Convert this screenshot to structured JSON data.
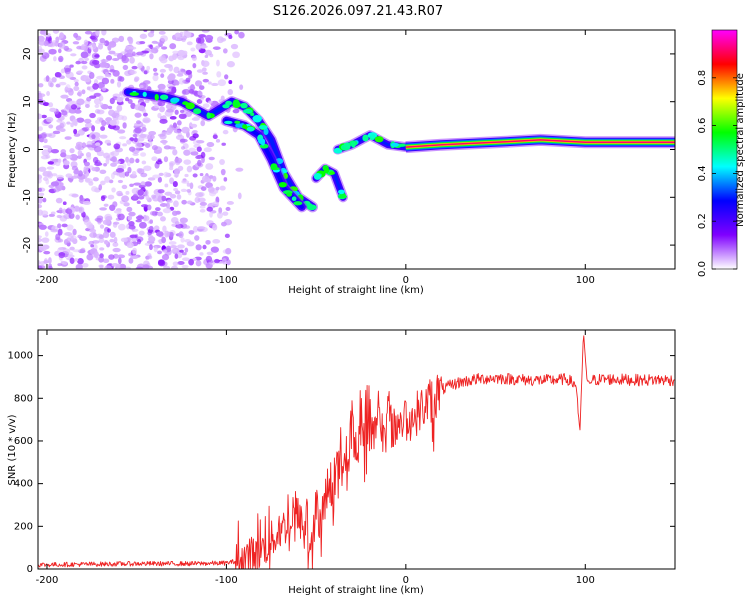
{
  "chart_data": [
    {
      "type": "heatmap",
      "title": "S126.2026.097.21.43.R07",
      "xlabel": "Height of straight line (km)",
      "ylabel": "Frequency (Hz)",
      "xlim": [
        -205,
        150
      ],
      "ylim": [
        -25,
        25
      ],
      "xticks": [
        -200,
        -100,
        0,
        100
      ],
      "yticks": [
        -20,
        -10,
        0,
        10,
        20
      ],
      "colorbar": {
        "label": "Normalized spectral amplitude",
        "range": [
          0.0,
          1.0
        ],
        "ticks": [
          "0.0",
          "0.2",
          "0.4",
          "0.6",
          "0.8"
        ],
        "tick_values": [
          0.0,
          0.2,
          0.4,
          0.6,
          0.8
        ],
        "colors": [
          "#ffffff",
          "#7f00ff",
          "#0000ff",
          "#00ffff",
          "#00ff00",
          "#ffff00",
          "#ff0000",
          "#ff00ff"
        ]
      },
      "ridge": {
        "upper_branch": [
          [
            -155,
            12
          ],
          [
            -135,
            11
          ],
          [
            -125,
            10
          ],
          [
            -110,
            7
          ],
          [
            -97,
            10
          ],
          [
            -90,
            9
          ],
          [
            -82,
            6
          ],
          [
            -75,
            2
          ],
          [
            -68,
            -5
          ],
          [
            -60,
            -10
          ],
          [
            -52,
            -12
          ]
        ],
        "lower_branch": [
          [
            -100,
            6
          ],
          [
            -90,
            5
          ],
          [
            -82,
            3
          ],
          [
            -75,
            -2
          ],
          [
            -68,
            -8
          ],
          [
            -58,
            -12
          ]
        ],
        "secondary": [
          [
            -50,
            -6
          ],
          [
            -45,
            -4
          ],
          [
            -40,
            -5
          ],
          [
            -35,
            -10
          ],
          [
            -38,
            0
          ],
          [
            -30,
            1
          ],
          [
            -20,
            3
          ],
          [
            -10,
            1
          ],
          [
            0,
            0.5
          ],
          [
            20,
            1
          ],
          [
            50,
            1.5
          ],
          [
            75,
            2
          ],
          [
            100,
            1.5
          ],
          [
            150,
            1.5
          ]
        ]
      }
    },
    {
      "type": "line",
      "xlabel": "Height of straight line (km)",
      "ylabel": "SNR (10 * v/v)",
      "xlim": [
        -205,
        150
      ],
      "ylim": [
        0,
        1120
      ],
      "xticks": [
        -200,
        -100,
        0,
        100
      ],
      "yticks": [
        0,
        200,
        400,
        600,
        800,
        1000
      ],
      "series": [
        {
          "name": "SNR",
          "color": "#ee2222",
          "x": [
            -205,
            -180,
            -150,
            -120,
            -100,
            -90,
            -80,
            -70,
            -60,
            -55,
            -50,
            -45,
            -40,
            -35,
            -30,
            -25,
            -20,
            -15,
            -10,
            -5,
            0,
            5,
            10,
            15,
            20,
            25,
            30,
            40,
            50,
            60,
            70,
            80,
            90,
            95,
            97,
            99,
            101,
            105,
            110,
            120,
            130,
            140,
            150
          ],
          "y": [
            20,
            22,
            25,
            25,
            28,
            45,
            90,
            180,
            260,
            120,
            200,
            300,
            420,
            520,
            560,
            600,
            630,
            650,
            660,
            680,
            700,
            720,
            760,
            800,
            840,
            860,
            875,
            890,
            895,
            890,
            885,
            885,
            890,
            860,
            640,
            1110,
            880,
            885,
            890,
            888,
            885,
            887,
            885
          ]
        }
      ],
      "bursts": {
        "x": [
          -55,
          -50,
          -45,
          -30,
          -25,
          -22,
          -20,
          -15,
          -10,
          -5,
          0,
          5,
          15
        ],
        "y": [
          340,
          380,
          230,
          830,
          880,
          880,
          880,
          850,
          850,
          810,
          820,
          750,
          640
        ]
      }
    }
  ]
}
